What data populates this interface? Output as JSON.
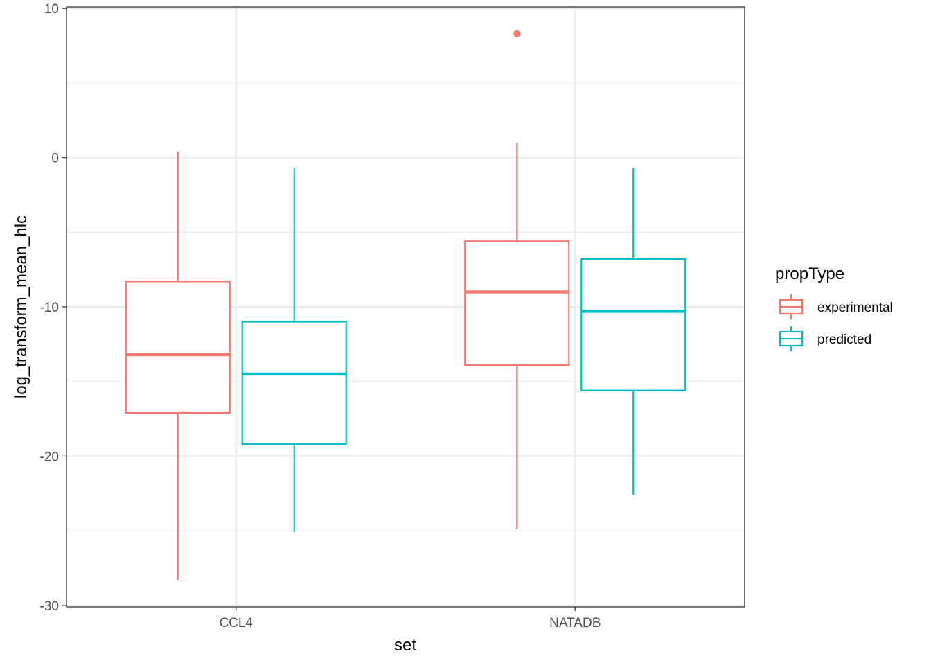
{
  "chart_data": {
    "type": "boxplot",
    "title": "",
    "xlabel": "set",
    "ylabel": "log_transform_mean_hlc",
    "categories": [
      "CCL4",
      "NATADB"
    ],
    "ylim": [
      -30.1,
      10.1
    ],
    "yticks": [
      10,
      0,
      -10,
      -20,
      -30
    ],
    "ytick_labels": [
      "10",
      "0",
      "-10",
      "-20",
      "-30"
    ],
    "grid": true,
    "legend": {
      "title": "propType",
      "position": "right",
      "entries": [
        "experimental",
        "predicted"
      ]
    },
    "colors": {
      "experimental": "#F8766D",
      "predicted": "#00BFC4"
    },
    "series": [
      {
        "name": "experimental",
        "boxes": [
          {
            "category": "CCL4",
            "whisker_low": -28.3,
            "q1": -17.1,
            "median": -13.2,
            "q3": -8.3,
            "whisker_high": 0.4,
            "outliers": []
          },
          {
            "category": "NATADB",
            "whisker_low": -24.9,
            "q1": -13.9,
            "median": -9.0,
            "q3": -5.6,
            "whisker_high": 1.0,
            "outliers": [
              8.3
            ]
          }
        ]
      },
      {
        "name": "predicted",
        "boxes": [
          {
            "category": "CCL4",
            "whisker_low": -25.1,
            "q1": -19.2,
            "median": -14.5,
            "q3": -11.0,
            "whisker_high": -0.7,
            "outliers": []
          },
          {
            "category": "NATADB",
            "whisker_low": -22.6,
            "q1": -15.6,
            "median": -10.3,
            "q3": -6.8,
            "whisker_high": -0.7,
            "outliers": []
          }
        ]
      }
    ]
  }
}
